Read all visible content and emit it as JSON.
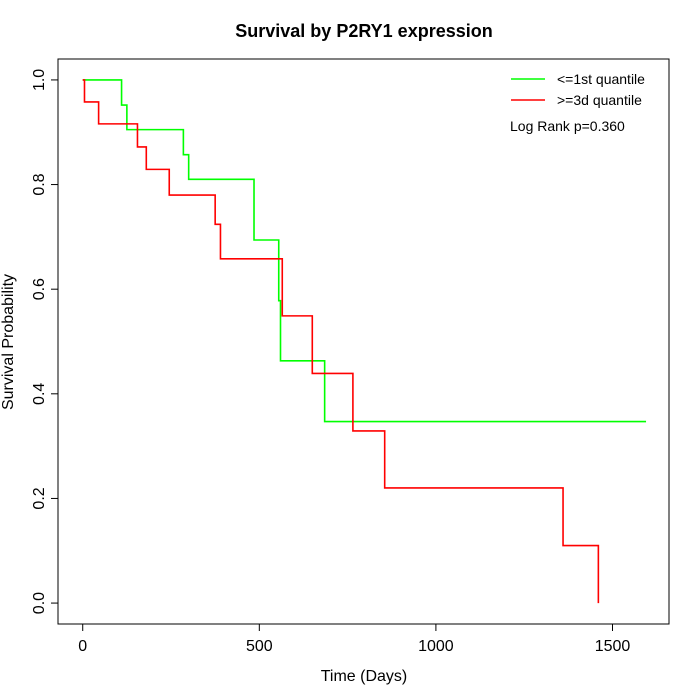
{
  "chart_data": {
    "type": "line",
    "title": "Survival by P2RY1 expression",
    "xlabel": "Time (Days)",
    "ylabel": "Survival Probability",
    "xlim": [
      -70,
      1660
    ],
    "ylim": [
      -0.04,
      1.04
    ],
    "x_ticks": [
      0,
      500,
      1000,
      1500
    ],
    "y_ticks": [
      0.0,
      0.2,
      0.4,
      0.6,
      0.8,
      1.0
    ],
    "x_tick_labels": [
      "0",
      "500",
      "1000",
      "1500"
    ],
    "y_tick_labels": [
      "0.0",
      "0.2",
      "0.4",
      "0.6",
      "0.8",
      "1.0"
    ],
    "grid": false,
    "legend_position": "top-right",
    "annotation": "Log Rank p=0.360",
    "series": [
      {
        "name": "<=1st quantile",
        "color": "#00ff00",
        "step": true,
        "x": [
          0,
          110,
          125,
          285,
          300,
          485,
          555,
          560,
          685,
          1595
        ],
        "y": [
          1.0,
          0.952,
          0.905,
          0.857,
          0.81,
          0.694,
          0.578,
          0.463,
          0.347,
          0.347
        ]
      },
      {
        "name": ">=3d quantile",
        "color": "#ff0000",
        "step": true,
        "x": [
          0,
          5,
          45,
          155,
          180,
          245,
          375,
          390,
          565,
          650,
          765,
          855,
          1360,
          1460
        ],
        "y": [
          1.0,
          0.958,
          0.916,
          0.872,
          0.829,
          0.78,
          0.724,
          0.658,
          0.549,
          0.439,
          0.329,
          0.22,
          0.11,
          0.0
        ]
      }
    ]
  }
}
